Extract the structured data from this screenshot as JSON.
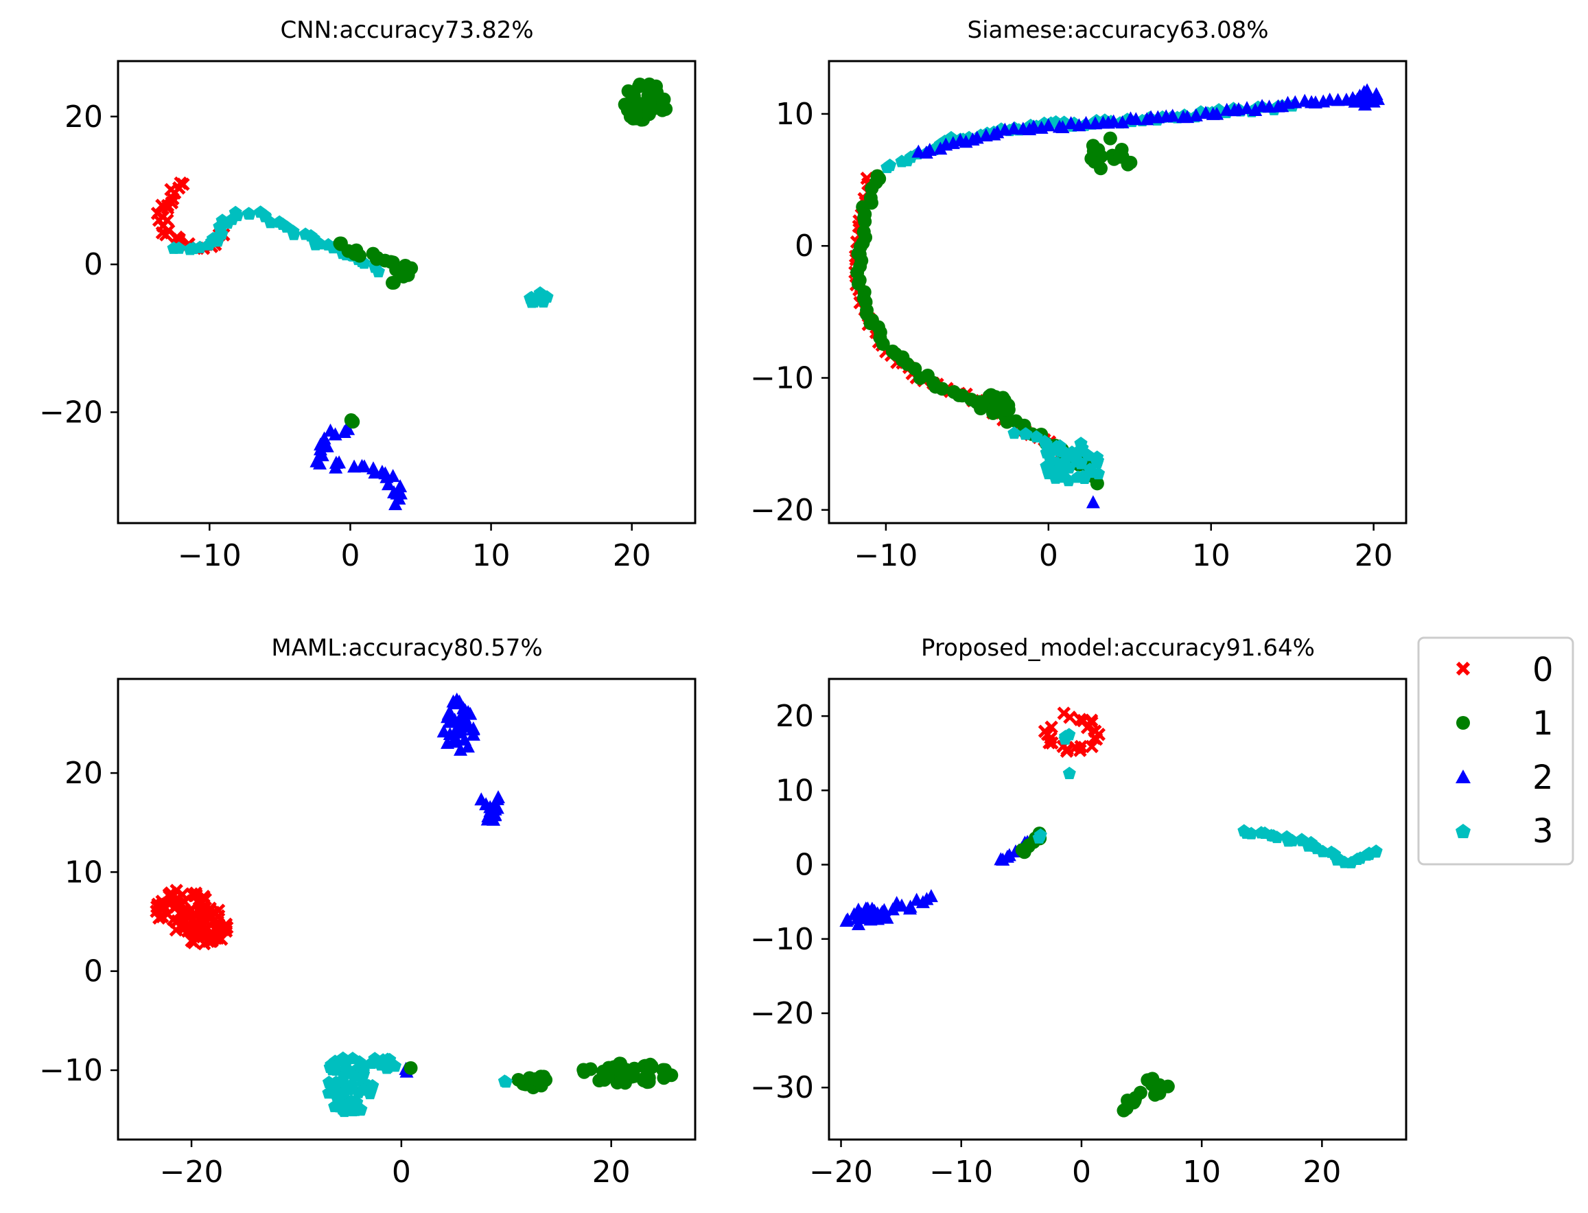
{
  "colors": {
    "0": "#ff0000",
    "1": "#007f00",
    "2": "#0000ff",
    "3": "#00bfbf",
    "axis": "#000000",
    "legend_border": "#cccccc"
  },
  "legend": {
    "entries": [
      {
        "label": "0",
        "marker": "x-marker",
        "color": "#ff0000"
      },
      {
        "label": "1",
        "marker": "circle-marker",
        "color": "#007f00"
      },
      {
        "label": "2",
        "marker": "triangle-marker",
        "color": "#0000ff"
      },
      {
        "label": "3",
        "marker": "pentagon-marker",
        "color": "#00bfbf"
      }
    ]
  },
  "chart_data": [
    {
      "type": "scatter",
      "title": "CNN:accuracy73.82%",
      "xlim": [
        -16.5,
        24.5
      ],
      "ylim": [
        -35,
        27.5
      ],
      "xticks": [
        -10,
        0,
        10,
        20
      ],
      "yticks": [
        -20,
        0,
        20
      ],
      "xtick_labels": [
        "−10",
        "0",
        "10",
        "20"
      ],
      "ytick_labels": [
        "−20",
        "0",
        "20"
      ],
      "clusters": [
        {
          "cls": 0,
          "shape": "path",
          "w": 0.8,
          "pts": [
            [
              -12,
              11
            ],
            [
              -12.8,
              9
            ],
            [
              -13.5,
              6.5
            ],
            [
              -13,
              4
            ],
            [
              -11.5,
              2.5
            ],
            [
              -10,
              2.5
            ],
            [
              -9,
              4
            ]
          ]
        },
        {
          "cls": 3,
          "shape": "path",
          "w": 0.7,
          "pts": [
            [
              -12.5,
              2.5
            ],
            [
              -11,
              2.3
            ],
            [
              -9.5,
              3
            ],
            [
              -9,
              5.5
            ],
            [
              -8,
              6.8
            ],
            [
              -6.5,
              6.8
            ],
            [
              -5,
              5.5
            ],
            [
              -3,
              3.5
            ],
            [
              -1,
              2
            ],
            [
              1,
              0.5
            ],
            [
              2,
              -1
            ]
          ]
        },
        {
          "cls": 1,
          "shape": "path",
          "w": 0.9,
          "pts": [
            [
              -1,
              3
            ],
            [
              1,
              1.5
            ],
            [
              2.5,
              0.5
            ],
            [
              3.5,
              -0.5
            ],
            [
              4.5,
              -0.8
            ],
            [
              3,
              -2.5
            ]
          ]
        },
        {
          "cls": 1,
          "shape": "blob",
          "cx": 21,
          "cy": 22,
          "rx": 1.6,
          "ry": 2.5,
          "n": 30
        },
        {
          "cls": 1,
          "shape": "blob",
          "cx": 20,
          "cy": 20.3,
          "rx": 0.7,
          "ry": 0.7,
          "n": 6
        },
        {
          "cls": 3,
          "shape": "blob",
          "cx": 13.5,
          "cy": -4.6,
          "rx": 0.9,
          "ry": 0.8,
          "n": 10
        },
        {
          "cls": 2,
          "shape": "path",
          "w": 0.9,
          "pts": [
            [
              0,
              -22
            ],
            [
              -2,
              -24
            ],
            [
              -2.2,
              -26.5
            ],
            [
              0,
              -27.5
            ],
            [
              2,
              -28
            ],
            [
              3,
              -29
            ],
            [
              3.2,
              -31
            ],
            [
              3.2,
              -32.5
            ]
          ]
        },
        {
          "cls": 1,
          "shape": "blob",
          "cx": 0.2,
          "cy": -21.2,
          "rx": 0.4,
          "ry": 0.4,
          "n": 2
        }
      ]
    },
    {
      "type": "scatter",
      "title": "Siamese:accuracy63.08%",
      "xlim": [
        -13.5,
        22
      ],
      "ylim": [
        -21,
        14
      ],
      "xticks": [
        -10,
        0,
        10,
        20
      ],
      "yticks": [
        -20,
        -10,
        0,
        10
      ],
      "xtick_labels": [
        "−10",
        "0",
        "10",
        "20"
      ],
      "ytick_labels": [
        "−20",
        "−10",
        "0",
        "10"
      ],
      "clusters": [
        {
          "cls": 0,
          "shape": "path",
          "w": 0.35,
          "pts": [
            [
              -11,
              5
            ],
            [
              -11.5,
              2
            ],
            [
              -11.8,
              -2
            ],
            [
              -11.3,
              -5
            ],
            [
              -10,
              -8
            ],
            [
              -8,
              -10
            ],
            [
              -6,
              -11
            ],
            [
              -4,
              -12
            ],
            [
              -2,
              -13.5
            ],
            [
              0,
              -15
            ],
            [
              1.5,
              -16
            ]
          ]
        },
        {
          "cls": 1,
          "shape": "path",
          "w": 0.45,
          "pts": [
            [
              -10.5,
              5.5
            ],
            [
              -11.2,
              3
            ],
            [
              -11.5,
              0
            ],
            [
              -11.6,
              -3
            ],
            [
              -11,
              -5.5
            ],
            [
              -10,
              -7.5
            ],
            [
              -8,
              -9.8
            ],
            [
              -6,
              -11
            ],
            [
              -4,
              -12
            ],
            [
              -2,
              -13.5
            ],
            [
              0,
              -15
            ],
            [
              2,
              -16.5
            ],
            [
              3,
              -18
            ]
          ]
        },
        {
          "cls": 1,
          "shape": "blob",
          "cx": -3.5,
          "cy": -12,
          "rx": 1.3,
          "ry": 0.8,
          "n": 14
        },
        {
          "cls": 3,
          "shape": "path",
          "w": 0.4,
          "pts": [
            [
              -10,
              5.8
            ],
            [
              -8,
              7
            ],
            [
              -6,
              8
            ],
            [
              -3,
              8.8
            ],
            [
              0,
              9.2
            ],
            [
              4,
              9.4
            ],
            [
              8,
              9.8
            ],
            [
              12,
              10.3
            ],
            [
              15,
              10.6
            ]
          ]
        },
        {
          "cls": 2,
          "shape": "path",
          "w": 0.3,
          "pts": [
            [
              -8,
              7
            ],
            [
              -3,
              8.7
            ],
            [
              5,
              9.5
            ],
            [
              10,
              10
            ],
            [
              14,
              10.6
            ],
            [
              17,
              11
            ],
            [
              19.5,
              11.2
            ]
          ]
        },
        {
          "cls": 2,
          "shape": "blob",
          "cx": 19.5,
          "cy": 11.2,
          "rx": 0.8,
          "ry": 0.6,
          "n": 12
        },
        {
          "cls": 1,
          "shape": "blob",
          "cx": 3.5,
          "cy": 7,
          "rx": 1.2,
          "ry": 1.2,
          "n": 14
        },
        {
          "cls": 1,
          "shape": "blob",
          "cx": 4.8,
          "cy": 6.2,
          "rx": 0.3,
          "ry": 0.3,
          "n": 2
        },
        {
          "cls": 3,
          "shape": "blob",
          "cx": 1.5,
          "cy": -16.5,
          "rx": 2,
          "ry": 1.6,
          "n": 38
        },
        {
          "cls": 3,
          "shape": "path",
          "w": 0.4,
          "pts": [
            [
              -2,
              -14
            ],
            [
              0,
              -15
            ],
            [
              2,
              -16.5
            ]
          ]
        },
        {
          "cls": 2,
          "shape": "blob",
          "cx": 2.7,
          "cy": -19.5,
          "rx": 0.2,
          "ry": 0.2,
          "n": 1
        }
      ]
    },
    {
      "type": "scatter",
      "title": "MAML:accuracy80.57%",
      "xlim": [
        -27,
        28
      ],
      "ylim": [
        -17,
        29.5
      ],
      "xticks": [
        -20,
        0,
        20
      ],
      "yticks": [
        -10,
        0,
        10,
        20
      ],
      "xtick_labels": [
        "−20",
        "0",
        "20"
      ],
      "ytick_labels": [
        "−10",
        "0",
        "10",
        "20"
      ],
      "clusters": [
        {
          "cls": 0,
          "shape": "blob",
          "cx": -20,
          "cy": 5.5,
          "rx": 3.8,
          "ry": 2.4,
          "rot": -0.55,
          "n": 110
        },
        {
          "cls": 2,
          "shape": "blob",
          "cx": 5.5,
          "cy": 24.8,
          "rx": 1.6,
          "ry": 2.6,
          "n": 40
        },
        {
          "cls": 2,
          "shape": "blob",
          "cx": 8.5,
          "cy": 16.5,
          "rx": 1.1,
          "ry": 1.6,
          "n": 18
        },
        {
          "cls": 3,
          "shape": "blob",
          "cx": -5,
          "cy": -11.5,
          "rx": 2.5,
          "ry": 3,
          "n": 70
        },
        {
          "cls": 3,
          "shape": "blob",
          "cx": -2,
          "cy": -9.5,
          "rx": 1.5,
          "ry": 0.8,
          "n": 12
        },
        {
          "cls": 2,
          "shape": "blob",
          "cx": 0.5,
          "cy": -10,
          "rx": 0.3,
          "ry": 0.3,
          "n": 2
        },
        {
          "cls": 1,
          "shape": "blob",
          "cx": 0.8,
          "cy": -9.7,
          "rx": 0.2,
          "ry": 0.2,
          "n": 1
        },
        {
          "cls": 1,
          "shape": "blob",
          "cx": 12.5,
          "cy": -11.2,
          "rx": 1.5,
          "ry": 0.9,
          "n": 14
        },
        {
          "cls": 1,
          "shape": "blob",
          "cx": 21.5,
          "cy": -10.3,
          "rx": 4.5,
          "ry": 1,
          "n": 45
        },
        {
          "cls": 3,
          "shape": "blob",
          "cx": 10,
          "cy": -11.2,
          "rx": 0.3,
          "ry": 0.3,
          "n": 2
        }
      ]
    },
    {
      "type": "scatter",
      "title": "Proposed_model:accuracy91.64%",
      "xlim": [
        -21,
        27
      ],
      "ylim": [
        -37,
        25
      ],
      "xticks": [
        -20,
        -10,
        0,
        10,
        20
      ],
      "yticks": [
        -30,
        -20,
        -10,
        0,
        10,
        20
      ],
      "xtick_labels": [
        "−20",
        "−10",
        "0",
        "10",
        "20"
      ],
      "ytick_labels": [
        "−30",
        "−20",
        "−10",
        "0",
        "10",
        "20"
      ],
      "clusters": [
        {
          "cls": 0,
          "shape": "path",
          "w": 1.0,
          "pts": [
            [
              -1,
              20
            ],
            [
              0.5,
              19.5
            ],
            [
              1,
              17.5
            ],
            [
              0,
              15.5
            ],
            [
              -2,
              15.8
            ],
            [
              -3,
              17
            ],
            [
              -2.5,
              18.5
            ]
          ]
        },
        {
          "cls": 3,
          "shape": "blob",
          "cx": -1.2,
          "cy": 17.3,
          "rx": 0.4,
          "ry": 0.5,
          "n": 3
        },
        {
          "cls": 3,
          "shape": "blob",
          "cx": -1,
          "cy": 12.3,
          "rx": 0.2,
          "ry": 0.2,
          "n": 1
        },
        {
          "cls": 2,
          "shape": "path",
          "w": 1.0,
          "pts": [
            [
              -19.5,
              -8
            ],
            [
              -17,
              -6.8
            ],
            [
              -14.5,
              -5.5
            ],
            [
              -12.5,
              -4.3
            ]
          ]
        },
        {
          "cls": 2,
          "shape": "blob",
          "cx": -17.5,
          "cy": -6.8,
          "rx": 1.5,
          "ry": 1,
          "n": 20
        },
        {
          "cls": 2,
          "shape": "path",
          "w": 0.6,
          "pts": [
            [
              -7,
              0.5
            ],
            [
              -5.5,
              1.5
            ],
            [
              -4.5,
              3
            ]
          ]
        },
        {
          "cls": 1,
          "shape": "path",
          "w": 0.6,
          "pts": [
            [
              -5,
              1.5
            ],
            [
              -4,
              3
            ],
            [
              -3.5,
              4.2
            ]
          ]
        },
        {
          "cls": 3,
          "shape": "blob",
          "cx": -3.6,
          "cy": 3.8,
          "rx": 0.3,
          "ry": 0.3,
          "n": 2
        },
        {
          "cls": 3,
          "shape": "path",
          "w": 0.6,
          "pts": [
            [
              13.5,
              4.5
            ],
            [
              16,
              3.8
            ],
            [
              18.5,
              3
            ],
            [
              20.5,
              1.5
            ],
            [
              22,
              0.3
            ],
            [
              24,
              1.5
            ],
            [
              24.5,
              1.8
            ]
          ]
        },
        {
          "cls": 1,
          "shape": "path",
          "w": 1.0,
          "pts": [
            [
              3.5,
              -33
            ],
            [
              4.5,
              -31.5
            ],
            [
              6,
              -30.5
            ],
            [
              6.8,
              -30
            ],
            [
              5.5,
              -29
            ]
          ]
        }
      ]
    }
  ]
}
